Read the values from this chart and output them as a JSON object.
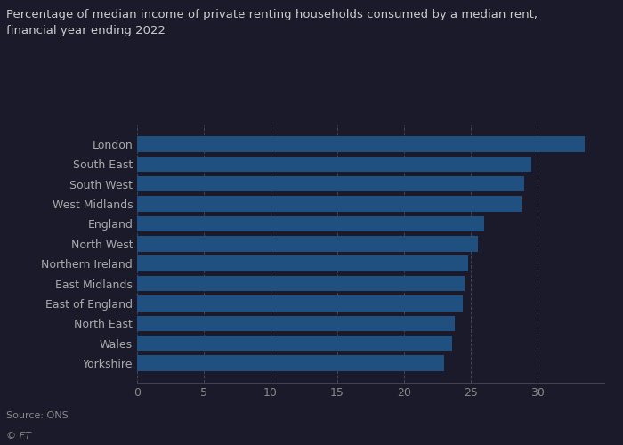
{
  "title": "Percentage of median income of private renting households consumed by a median rent,\nfinancial year ending 2022",
  "categories": [
    "London",
    "South East",
    "South West",
    "West Midlands",
    "England",
    "North West",
    "Northern Ireland",
    "East Midlands",
    "East of England",
    "North East",
    "Wales",
    "Yorkshire"
  ],
  "values": [
    33.5,
    29.5,
    29.0,
    28.8,
    26.0,
    25.5,
    24.8,
    24.5,
    24.4,
    23.8,
    23.6,
    23.0
  ],
  "bar_color": "#1f5080",
  "xlim": [
    0,
    35
  ],
  "xticks": [
    0,
    5,
    10,
    15,
    20,
    25,
    30
  ],
  "source": "Source: ONS",
  "footer": "© FT",
  "bg_color": "#1a1a2a",
  "plot_bg_color": "#1a1a2a",
  "title_color": "#cccccc",
  "label_color": "#aaaaaa",
  "tick_color": "#888888",
  "source_color": "#888888",
  "grid_color": "#444455",
  "title_fontsize": 9.5,
  "label_fontsize": 9,
  "tick_fontsize": 9,
  "source_fontsize": 8,
  "bar_height": 0.78
}
